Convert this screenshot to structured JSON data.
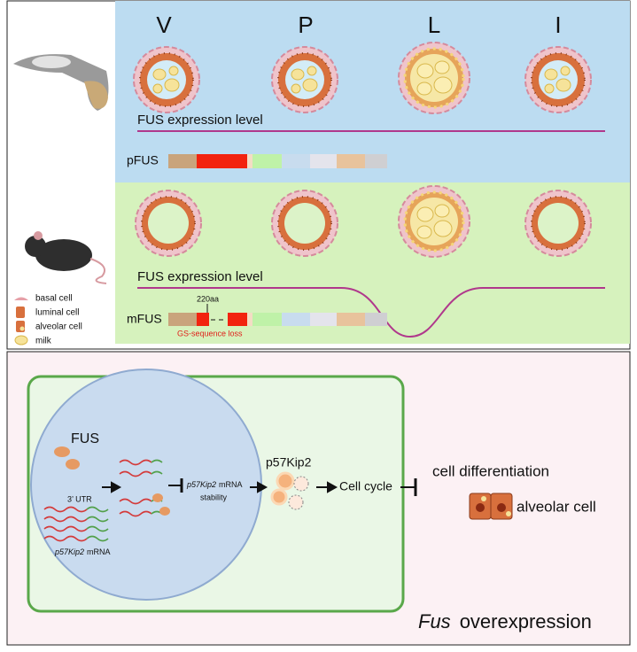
{
  "stages": [
    "V",
    "P",
    "L",
    "I"
  ],
  "glider_panel": {
    "expression_label": "FUS expression level",
    "protein_label": "pFUS"
  },
  "mouse_panel": {
    "expression_label": "FUS expression level",
    "protein_label": "mFUS",
    "site_label": "220aa",
    "loss_label": "GS-sequence loss"
  },
  "legend": [
    "basal cell",
    "luminal cell",
    "alveolar cell",
    "milk"
  ],
  "mechanism": {
    "protein": "FUS",
    "utr": "3’ UTR",
    "mrna_gene": "p57Kip2",
    "mrna_suffix": "mRNA",
    "stability_gene": "p57Kip2",
    "stability_suffix": "mRNA",
    "stability_word": "stability",
    "product": "p57Kip2",
    "cell_cycle": "Cell cycle",
    "differentiation": "cell differentiation",
    "cell_type": "alveolar cell",
    "condition_gene": "Fus",
    "condition_word": "overexpression"
  }
}
